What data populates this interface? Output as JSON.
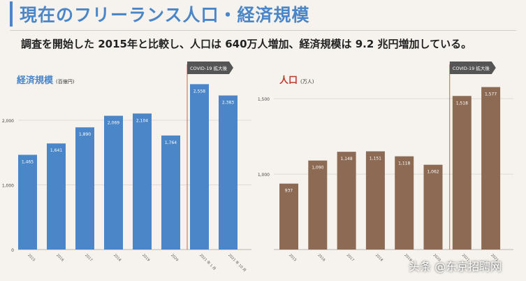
{
  "page": {
    "title": "現在のフリーランス人口・経済規模",
    "subtitle": "調査を開始した 2015年と比較し、人口は 640万人増加、経済規模は 9.2 兆円増加している。",
    "watermark": "头条 @东京招聘网"
  },
  "colors": {
    "accent": "#4a86c8",
    "left_bars": "#4a86c8",
    "right_bars": "#8c6a54",
    "right_title": "#c0392b",
    "callout_arrow": "#555555",
    "callout_line": "#c0392b"
  },
  "chart_data": [
    {
      "type": "bar",
      "title": "経済規模",
      "unit": "(百億円)",
      "categories": [
        "2015",
        "2016",
        "2017",
        "2018",
        "2019",
        "2020",
        "2021 年 1 月",
        "2021 年 10 月"
      ],
      "values": [
        1465,
        1641,
        1890,
        2069,
        2104,
        1764,
        2558,
        2383
      ],
      "value_labels": [
        "1,465",
        "1,641",
        "1,890",
        "2,069",
        "2,104",
        "1,764",
        "2,558",
        "2,383"
      ],
      "yticks": [
        0,
        1000,
        2000
      ],
      "ytick_labels": [
        "0",
        "1,000",
        "2,000"
      ],
      "ylim": [
        0,
        2800
      ],
      "grid": true,
      "callout": {
        "label": "COVID-19 拡大後"
      }
    },
    {
      "type": "bar",
      "title": "人口",
      "unit": "(万人)",
      "categories": [
        "2015",
        "2016",
        "2017",
        "2018",
        "2019",
        "2020",
        "2021",
        "2021"
      ],
      "values": [
        937,
        1090,
        1148,
        1151,
        1118,
        1062,
        1518,
        1577
      ],
      "value_labels": [
        "937",
        "1,090",
        "1,148",
        "1,151",
        "1,118",
        "1,062",
        "1,518",
        "1,577"
      ],
      "yticks": [
        1000,
        1500
      ],
      "ytick_labels": [
        "1,000",
        "1,500"
      ],
      "ylim": [
        500,
        1700
      ],
      "grid": true,
      "callout": {
        "label": "COVID-19 拡大後"
      }
    }
  ]
}
